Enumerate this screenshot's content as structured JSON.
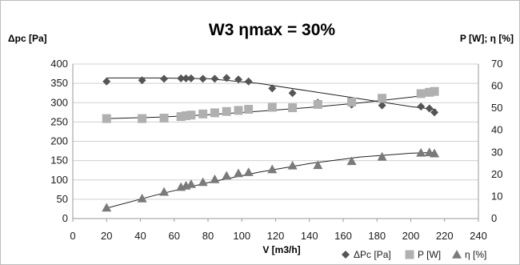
{
  "chart_data": {
    "type": "scatter",
    "title": "W3 ηmax = 30%",
    "xlabel": "V [m3/h]",
    "ylabel_left": "Δpc [Pa]",
    "ylabel_right": "P [W]; η [%]",
    "xlim": [
      0,
      240
    ],
    "xticks": [
      "0",
      "20",
      "40",
      "60",
      "80",
      "100",
      "120",
      "140",
      "160",
      "180",
      "200",
      "220",
      "240"
    ],
    "ylim_left": [
      0,
      400
    ],
    "yticks_left": [
      "0",
      "50",
      "100",
      "150",
      "200",
      "250",
      "300",
      "350",
      "400"
    ],
    "ylim_right": [
      0,
      70
    ],
    "yticks_right": [
      "0",
      "10",
      "20",
      "30",
      "40",
      "50",
      "60",
      "70"
    ],
    "grid": "horizontal",
    "legend_position": "bottom-right",
    "series": [
      {
        "name": "ΔPc [Pa]",
        "axis": "left",
        "marker": "diamond",
        "color": "#555555",
        "x": [
          20,
          41,
          54,
          64,
          67,
          70,
          77,
          84,
          91,
          98,
          104,
          118,
          130,
          145,
          165,
          183,
          206,
          211,
          214
        ],
        "y": [
          355,
          358,
          362,
          363,
          363,
          363,
          362,
          362,
          364,
          360,
          355,
          337,
          325,
          300,
          295,
          293,
          290,
          285,
          275
        ]
      },
      {
        "name": "P [W]",
        "axis": "right",
        "marker": "square",
        "color": "#b0b0b0",
        "x": [
          20,
          41,
          54,
          64,
          67,
          70,
          77,
          84,
          91,
          98,
          104,
          118,
          130,
          145,
          165,
          183,
          206,
          211,
          214
        ],
        "y": [
          45.3,
          45.3,
          45.5,
          46.2,
          46.6,
          46.9,
          47.4,
          47.9,
          48.5,
          49.0,
          49.5,
          50.4,
          50.2,
          51.7,
          52.8,
          54.5,
          56.6,
          57.2,
          57.6
        ]
      },
      {
        "name": "η [%]",
        "axis": "right",
        "marker": "triangle",
        "color": "#7a7a7a",
        "x": [
          20,
          41,
          54,
          64,
          67,
          70,
          77,
          84,
          91,
          98,
          104,
          118,
          130,
          145,
          165,
          183,
          206,
          211,
          214
        ],
        "y": [
          4.9,
          9.1,
          12.1,
          14.3,
          14.9,
          15.6,
          16.5,
          17.8,
          19.4,
          20.5,
          21.0,
          22.3,
          24.0,
          24.2,
          26.0,
          28.0,
          29.8,
          30.0,
          29.5
        ]
      }
    ],
    "trendlines": [
      {
        "series": "ΔPc [Pa]",
        "axis": "left",
        "x": [
          20,
          50,
          80,
          110,
          140,
          170,
          200,
          215
        ],
        "y": [
          364,
          364,
          362,
          350,
          330,
          310,
          290,
          282
        ]
      },
      {
        "series": "P [W]",
        "axis": "right",
        "x": [
          20,
          50,
          80,
          110,
          140,
          170,
          200,
          215
        ],
        "y": [
          45.3,
          45.9,
          47.0,
          48.6,
          50.3,
          52.4,
          55.0,
          56.5
        ]
      },
      {
        "series": "η [%]",
        "axis": "right",
        "x": [
          20,
          50,
          80,
          110,
          140,
          170,
          200,
          215
        ],
        "y": [
          4.7,
          10.8,
          16.3,
          21.0,
          24.9,
          27.9,
          29.6,
          30.0
        ]
      }
    ]
  }
}
